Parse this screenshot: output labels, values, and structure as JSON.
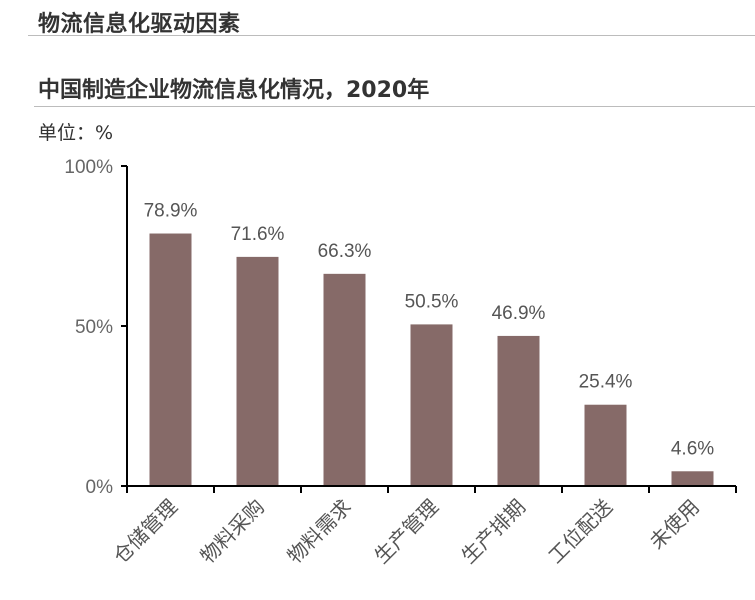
{
  "section_title": "物流信息化驱动因素",
  "chart_title": "中国制造企业物流信息化情况，2020年",
  "unit_label": "单位：%",
  "colors": {
    "bar": "#866a68",
    "axis": "#000000",
    "rule": "#bcbcbc"
  },
  "chart_data": {
    "type": "bar",
    "title": "中国制造企业物流信息化情况，2020年",
    "xlabel": "",
    "ylabel": "单位：%",
    "ylim": [
      0,
      100
    ],
    "yticks": [
      "0%",
      "50%",
      "100%"
    ],
    "grid": false,
    "legend": null,
    "categories": [
      "仓储管理",
      "物料采购",
      "物料需求",
      "生产管理",
      "生产排期",
      "工位配送",
      "未使用"
    ],
    "values": [
      78.9,
      71.6,
      66.3,
      50.5,
      46.9,
      25.4,
      4.6
    ],
    "value_labels": [
      "78.9%",
      "71.6%",
      "66.3%",
      "50.5%",
      "46.9%",
      "25.4%",
      "4.6%"
    ]
  }
}
